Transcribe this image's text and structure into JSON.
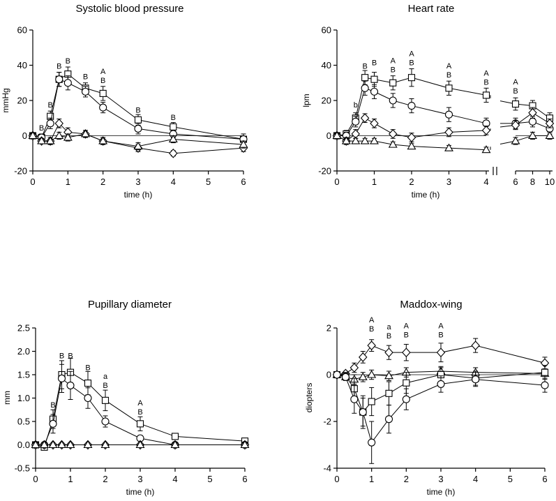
{
  "figure": {
    "markers": {
      "circle": "circle",
      "square": "square",
      "diamond": "diamond",
      "triangle": "triangle"
    }
  },
  "chart_data": [
    {
      "type": "line",
      "title": "Systolic blood pressure",
      "xlabel": "time (h)",
      "ylabel": "mmHg",
      "xlim": [
        0,
        6
      ],
      "ylim": [
        -20,
        60
      ],
      "xticks": [
        0,
        1,
        2,
        3,
        4,
        5,
        6
      ],
      "yticks": [
        -20,
        0,
        20,
        40,
        60
      ],
      "series": [
        {
          "name": "square",
          "marker": "square",
          "x": [
            0,
            0.25,
            0.5,
            0.75,
            1,
            1.5,
            2,
            3,
            4,
            6
          ],
          "y": [
            0,
            -1,
            11,
            32,
            35,
            27,
            24,
            9,
            5,
            -2
          ],
          "err": [
            1.5,
            2,
            3,
            4,
            4,
            3,
            4,
            3,
            2.5,
            3
          ]
        },
        {
          "name": "circle",
          "marker": "circle",
          "x": [
            0,
            0.25,
            0.5,
            0.75,
            1,
            1.5,
            2,
            3,
            4,
            6
          ],
          "y": [
            0,
            -1,
            7,
            32,
            30,
            25,
            16,
            4,
            1,
            -2
          ],
          "err": [
            1.5,
            2,
            3,
            4,
            4,
            3,
            3,
            3,
            2,
            3
          ]
        },
        {
          "name": "diamond",
          "marker": "diamond",
          "x": [
            0,
            0.25,
            0.5,
            0.75,
            1,
            1.5,
            2,
            3,
            4,
            6
          ],
          "y": [
            0,
            -3,
            -3,
            7,
            2,
            1,
            -3,
            -7,
            -10,
            -7
          ],
          "err": [
            1.5,
            1.5,
            2,
            2.5,
            2.5,
            2,
            2,
            2,
            1.5,
            2
          ]
        },
        {
          "name": "triangle",
          "marker": "triangle",
          "x": [
            0,
            0.25,
            0.5,
            0.75,
            1,
            1.5,
            2,
            3,
            4,
            6
          ],
          "y": [
            0,
            -3,
            -3,
            0,
            -1,
            1,
            -3,
            -6,
            -2,
            -5
          ],
          "err": [
            1.5,
            1.5,
            2,
            2,
            2,
            2,
            2,
            2,
            2,
            2
          ]
        }
      ],
      "annotations": [
        {
          "x": 0.25,
          "y": 3,
          "lines": [
            "B"
          ]
        },
        {
          "x": 0.5,
          "y": 16,
          "lines": [
            "B"
          ]
        },
        {
          "x": 0.75,
          "y": 38,
          "lines": [
            "B"
          ]
        },
        {
          "x": 1,
          "y": 41,
          "lines": [
            "B"
          ]
        },
        {
          "x": 1.5,
          "y": 32,
          "lines": [
            "B"
          ]
        },
        {
          "x": 2,
          "y": 30,
          "lines": [
            "A",
            "B"
          ]
        },
        {
          "x": 3,
          "y": 13,
          "lines": [
            "B"
          ]
        },
        {
          "x": 4,
          "y": 9,
          "lines": [
            "B"
          ]
        }
      ]
    },
    {
      "type": "line",
      "title": "Heart rate",
      "xlabel": "time (h)",
      "ylabel": "lpm",
      "ylim": [
        -20,
        60
      ],
      "xticks": [
        0,
        1,
        2,
        3,
        4,
        6,
        8,
        10
      ],
      "yticks": [
        -20,
        0,
        20,
        40,
        60
      ],
      "x_axis_break": "between 4 and 6 h",
      "series": [
        {
          "name": "square",
          "marker": "square",
          "x": [
            0,
            0.25,
            0.5,
            0.75,
            1,
            1.5,
            2,
            3,
            4,
            6,
            8,
            10
          ],
          "y": [
            0,
            1,
            10,
            33,
            32,
            30,
            33,
            27,
            23,
            18,
            17,
            10
          ],
          "err": [
            1.5,
            2,
            3,
            4,
            4,
            4,
            5,
            4,
            4,
            3.5,
            3,
            3
          ]
        },
        {
          "name": "circle",
          "marker": "circle",
          "x": [
            0,
            0.25,
            0.5,
            0.75,
            1,
            1.5,
            2,
            3,
            4,
            6,
            8,
            10
          ],
          "y": [
            0,
            0,
            8,
            27,
            25,
            20,
            17,
            12,
            7,
            7,
            8,
            4
          ],
          "err": [
            1.5,
            2,
            3,
            4,
            4,
            4,
            4,
            4,
            3,
            3,
            3,
            3
          ]
        },
        {
          "name": "diamond",
          "marker": "diamond",
          "x": [
            0,
            0.25,
            0.5,
            0.75,
            1,
            1.5,
            2,
            3,
            4,
            6,
            8,
            10
          ],
          "y": [
            0,
            -3,
            1,
            10,
            7,
            1,
            -1,
            2,
            3,
            6,
            13,
            7
          ],
          "err": [
            1.5,
            2,
            2.5,
            2.5,
            2.5,
            2.5,
            2.5,
            2.5,
            2.5,
            2.5,
            3,
            2.5
          ]
        },
        {
          "name": "triangle",
          "marker": "triangle",
          "x": [
            0,
            0.25,
            0.5,
            0.75,
            1,
            1.5,
            2,
            3,
            4,
            6,
            8,
            10
          ],
          "y": [
            0,
            -3,
            -3,
            -3,
            -3,
            -5,
            -6,
            -7,
            -8,
            -3,
            0,
            0
          ],
          "err": [
            1,
            1.5,
            1.5,
            1.5,
            1.5,
            1.5,
            1.5,
            1.5,
            1.5,
            2,
            2,
            2
          ]
        }
      ],
      "annotations": [
        {
          "x": 0.5,
          "y": 16,
          "lines": [
            "b"
          ]
        },
        {
          "x": 0.75,
          "y": 38,
          "lines": [
            "B"
          ]
        },
        {
          "x": 1,
          "y": 40,
          "lines": [
            "B"
          ]
        },
        {
          "x": 1.5,
          "y": 36,
          "lines": [
            "A",
            "B"
          ]
        },
        {
          "x": 2,
          "y": 40,
          "lines": [
            "A",
            "B"
          ]
        },
        {
          "x": 3,
          "y": 33,
          "lines": [
            "A",
            "B"
          ]
        },
        {
          "x": 4,
          "y": 29,
          "lines": [
            "A",
            "B"
          ]
        },
        {
          "x": 6,
          "y": 24,
          "lines": [
            "A",
            "B"
          ]
        }
      ]
    },
    {
      "type": "line",
      "title": "Pupillary diameter",
      "xlabel": "time (h)",
      "ylabel": "mm",
      "xlim": [
        0,
        6
      ],
      "ylim": [
        -0.5,
        2.5
      ],
      "xticks": [
        0,
        1,
        2,
        3,
        4,
        5,
        6
      ],
      "yticks": [
        -0.5,
        0.0,
        0.5,
        1.0,
        1.5,
        2.0,
        2.5
      ],
      "ytick_labels": [
        "-0.5",
        "0.0",
        "0.5",
        "1.0",
        "1.5",
        "2.0",
        "2.5"
      ],
      "series": [
        {
          "name": "square",
          "marker": "square",
          "x": [
            0,
            0.25,
            0.5,
            0.75,
            1,
            1.5,
            2,
            3,
            4,
            6
          ],
          "y": [
            0,
            -0.05,
            0.55,
            1.5,
            1.55,
            1.32,
            0.95,
            0.45,
            0.18,
            0.08
          ],
          "err": [
            0.02,
            0.03,
            0.2,
            0.3,
            0.3,
            0.25,
            0.22,
            0.15,
            0.06,
            0.04
          ]
        },
        {
          "name": "circle",
          "marker": "circle",
          "x": [
            0,
            0.25,
            0.5,
            0.75,
            1,
            1.5,
            2,
            3,
            4,
            6
          ],
          "y": [
            0,
            0,
            0.45,
            1.42,
            1.27,
            1.0,
            0.5,
            0.14,
            0,
            0
          ],
          "err": [
            0.02,
            0.02,
            0.2,
            0.3,
            0.3,
            0.22,
            0.12,
            0.06,
            0.02,
            0.02
          ]
        },
        {
          "name": "diamond",
          "marker": "diamond",
          "x": [
            0,
            0.25,
            0.5,
            0.75,
            1,
            1.5,
            2,
            3,
            4,
            6
          ],
          "y": [
            0,
            0,
            0,
            0,
            0,
            0,
            0,
            0,
            0,
            0
          ],
          "err": [
            0,
            0,
            0,
            0,
            0,
            0,
            0,
            0,
            0,
            0
          ]
        },
        {
          "name": "triangle",
          "marker": "triangle",
          "x": [
            0,
            0.25,
            0.5,
            0.75,
            1,
            1.5,
            2,
            3,
            4,
            6
          ],
          "y": [
            0,
            0,
            0,
            0,
            0,
            0,
            0,
            0,
            0,
            0
          ],
          "err": [
            0,
            0,
            0,
            0,
            0,
            0,
            0,
            0,
            0,
            0
          ]
        }
      ],
      "annotations": [
        {
          "x": 0.5,
          "y": 0.8,
          "lines": [
            "B"
          ]
        },
        {
          "x": 0.75,
          "y": 1.85,
          "lines": [
            "B"
          ]
        },
        {
          "x": 1,
          "y": 1.85,
          "lines": [
            "B"
          ]
        },
        {
          "x": 1.5,
          "y": 1.6,
          "lines": [
            "B"
          ]
        },
        {
          "x": 2,
          "y": 1.22,
          "lines": [
            "a",
            "B"
          ]
        },
        {
          "x": 3,
          "y": 0.65,
          "lines": [
            "A",
            "B"
          ]
        }
      ]
    },
    {
      "type": "line",
      "title": "Maddox-wing",
      "xlabel": "time (h)",
      "ylabel": "diopters",
      "xlim": [
        0,
        6
      ],
      "ylim": [
        -4,
        2
      ],
      "xticks": [
        0,
        1,
        2,
        3,
        4,
        5,
        6
      ],
      "yticks": [
        -4,
        -2,
        0,
        2
      ],
      "series": [
        {
          "name": "diamond",
          "marker": "diamond",
          "x": [
            0,
            0.25,
            0.5,
            0.75,
            1,
            1.5,
            2,
            3,
            4,
            6
          ],
          "y": [
            0,
            0.05,
            0.3,
            0.75,
            1.25,
            0.95,
            0.95,
            0.95,
            1.25,
            0.5
          ],
          "err": [
            0.05,
            0.1,
            0.2,
            0.25,
            0.25,
            0.3,
            0.35,
            0.4,
            0.3,
            0.25
          ]
        },
        {
          "name": "triangle",
          "marker": "triangle",
          "x": [
            0,
            0.25,
            0.5,
            0.75,
            1,
            1.5,
            2,
            3,
            4,
            6
          ],
          "y": [
            0,
            -0.1,
            -0.2,
            -0.1,
            0,
            -0.05,
            0.1,
            0.15,
            0.1,
            0.05
          ],
          "err": [
            0.05,
            0.1,
            0.2,
            0.2,
            0.2,
            0.2,
            0.2,
            0.2,
            0.2,
            0.2
          ]
        },
        {
          "name": "square",
          "marker": "square",
          "x": [
            0,
            0.25,
            0.5,
            0.75,
            1,
            1.5,
            2,
            3,
            4,
            6
          ],
          "y": [
            0,
            -0.05,
            -0.6,
            -1.6,
            -1.15,
            -0.8,
            -0.35,
            0,
            -0.15,
            0.1
          ],
          "err": [
            0.05,
            0.15,
            0.45,
            0.6,
            0.6,
            0.5,
            0.45,
            0.3,
            0.3,
            0.3
          ]
        },
        {
          "name": "circle",
          "marker": "circle",
          "x": [
            0,
            0.25,
            0.5,
            0.75,
            1,
            1.5,
            2,
            3,
            4,
            6
          ],
          "y": [
            0,
            -0.1,
            -1.05,
            -1.6,
            -2.9,
            -1.9,
            -1.05,
            -0.4,
            -0.2,
            -0.45
          ],
          "err": [
            0.05,
            0.15,
            0.6,
            0.7,
            0.9,
            0.6,
            0.45,
            0.35,
            0.3,
            0.3
          ]
        }
      ],
      "annotations": [
        {
          "x": 1,
          "y": 1.85,
          "lines": [
            "A",
            "B"
          ]
        },
        {
          "x": 1.5,
          "y": 1.55,
          "lines": [
            "a",
            "B"
          ]
        },
        {
          "x": 2,
          "y": 1.6,
          "lines": [
            "A",
            "B"
          ]
        },
        {
          "x": 3,
          "y": 1.6,
          "lines": [
            "A",
            "B"
          ]
        }
      ]
    }
  ]
}
